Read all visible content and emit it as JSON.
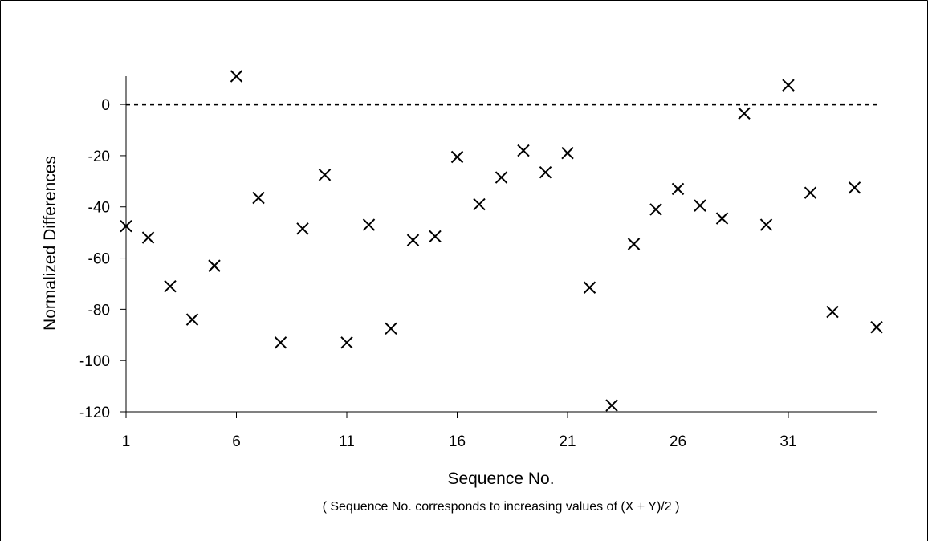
{
  "chart_data": {
    "type": "scatter",
    "title": "",
    "xlabel": "Sequence No.",
    "ylabel": "Normalized Differences",
    "note": "(  Sequence No. corresponds to increasing values of (X + Y)/2  )",
    "xlim": [
      1,
      35
    ],
    "ylim": [
      -120,
      10
    ],
    "x_ticks": [
      1,
      6,
      11,
      16,
      21,
      26,
      31
    ],
    "y_ticks": [
      0,
      -20,
      -40,
      -60,
      -80,
      -100,
      -120
    ],
    "marker": "x",
    "reference_line": {
      "y": 0,
      "style": "dotted"
    },
    "grid": false,
    "legend": "none",
    "x": [
      1,
      2,
      3,
      4,
      5,
      6,
      7,
      8,
      9,
      10,
      11,
      12,
      13,
      14,
      15,
      16,
      17,
      18,
      19,
      20,
      21,
      22,
      23,
      24,
      25,
      26,
      27,
      28,
      29,
      30,
      31,
      32,
      33,
      34,
      35
    ],
    "y": [
      -47.5,
      -52,
      -71,
      -84,
      -63,
      11,
      -36.5,
      -93,
      -48.5,
      -27.5,
      -93,
      -47,
      -87.5,
      -53,
      -51.5,
      -20.5,
      -39,
      -28.5,
      -18,
      -26.5,
      -19,
      -71.5,
      -117.5,
      -54.5,
      -41,
      -33,
      -39.5,
      -44.5,
      -3.5,
      -47,
      7.5,
      -34.5,
      -81,
      -32.5,
      -87
    ]
  }
}
